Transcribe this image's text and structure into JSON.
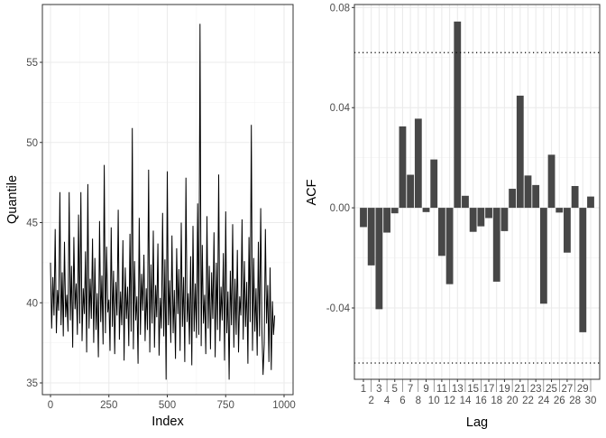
{
  "chart_data": [
    {
      "type": "line",
      "xlabel": "Index",
      "ylabel": "Quantile",
      "xlim": [
        0,
        1000
      ],
      "ylim": [
        34.5,
        58
      ],
      "xticks": [
        "0",
        "250",
        "500",
        "750",
        "1000"
      ],
      "yticks": [
        "35",
        "40",
        "45",
        "50",
        "55"
      ],
      "grid": true,
      "line_color": "#000000",
      "x_step": 5,
      "values": [
        42.5,
        38.4,
        41.6,
        39.2,
        44.6,
        38.1,
        40.8,
        39.5,
        46.9,
        38.6,
        41.9,
        37.9,
        43.8,
        39.1,
        40.5,
        38.2,
        46.9,
        38.9,
        42.3,
        37.2,
        44.1,
        39.6,
        41.2,
        38.0,
        45.5,
        38.7,
        46.9,
        37.6,
        40.9,
        39.3,
        43.2,
        36.9,
        47.4,
        38.4,
        41.5,
        39.0,
        44.0,
        37.5,
        42.8,
        38.3,
        40.6,
        36.6,
        45.1,
        38.8,
        41.7,
        37.4,
        48.6,
        38.1,
        43.5,
        39.4,
        40.2,
        37.0,
        44.7,
        38.5,
        42.0,
        36.8,
        41.3,
        39.2,
        45.8,
        37.7,
        40.7,
        38.6,
        43.9,
        36.4,
        42.2,
        39.0,
        41.0,
        37.3,
        44.3,
        38.2,
        50.9,
        37.1,
        42.6,
        38.9,
        40.4,
        36.2,
        45.3,
        38.0,
        41.8,
        39.5,
        43.0,
        37.6,
        40.9,
        38.3,
        48.3,
        36.9,
        42.4,
        38.7,
        44.5,
        37.2,
        41.1,
        39.1,
        43.7,
        36.7,
        40.3,
        38.4,
        45.6,
        37.9,
        42.7,
        35.2,
        48.2,
        38.6,
        41.4,
        37.5,
        44.2,
        38.1,
        40.8,
        36.5,
        43.4,
        39.3,
        42.1,
        37.0,
        45.0,
        38.5,
        41.6,
        36.3,
        47.8,
        38.8,
        40.6,
        37.4,
        42.9,
        36.1,
        44.8,
        38.2,
        41.2,
        37.8,
        46.2,
        38.0,
        57.4,
        37.3,
        43.6,
        38.7,
        40.5,
        36.8,
        45.4,
        38.4,
        42.3,
        37.1,
        41.9,
        39.0,
        44.4,
        36.6,
        42.5,
        38.3,
        48.0,
        37.6,
        41.0,
        38.9,
        43.1,
        36.4,
        45.7,
        38.1,
        40.7,
        35.2,
        42.0,
        38.6,
        44.9,
        37.2,
        41.5,
        38.0,
        43.3,
        36.9,
        40.4,
        39.2,
        45.2,
        37.7,
        42.6,
        38.5,
        41.3,
        36.2,
        44.1,
        38.8,
        51.1,
        37.0,
        42.8,
        38.2,
        40.9,
        36.7,
        43.8,
        37.9,
        45.9,
        38.4,
        35.5,
        37.4,
        44.6,
        38.7,
        41.1,
        36.3,
        42.2,
        35.8,
        40.1,
        38.0,
        39.2
      ]
    },
    {
      "type": "bar",
      "xlabel": "Lag",
      "ylabel": "ACF",
      "categories": [
        "1",
        "2",
        "3",
        "4",
        "5",
        "6",
        "7",
        "8",
        "9",
        "10",
        "11",
        "12",
        "13",
        "14",
        "15",
        "16",
        "17",
        "18",
        "19",
        "20",
        "21",
        "22",
        "23",
        "24",
        "25",
        "26",
        "27",
        "28",
        "29",
        "30"
      ],
      "values": [
        -0.0077,
        -0.023,
        -0.0405,
        -0.0099,
        -0.0022,
        0.0325,
        0.0132,
        0.0356,
        -0.0017,
        0.0193,
        -0.0192,
        -0.0305,
        0.0744,
        0.0048,
        -0.0096,
        -0.0074,
        -0.0041,
        -0.0295,
        -0.0093,
        0.0076,
        0.0448,
        0.0129,
        0.0091,
        -0.0383,
        0.0212,
        -0.0019,
        -0.0179,
        0.0087,
        -0.0497,
        0.0045
      ],
      "ylim": [
        -0.0685,
        0.0812
      ],
      "yticks": [
        "-0.04",
        "0.00",
        "0.04",
        "0.08"
      ],
      "confidence_band": [
        -0.062,
        0.062
      ],
      "bar_color": "#474747",
      "grid": true
    }
  ]
}
